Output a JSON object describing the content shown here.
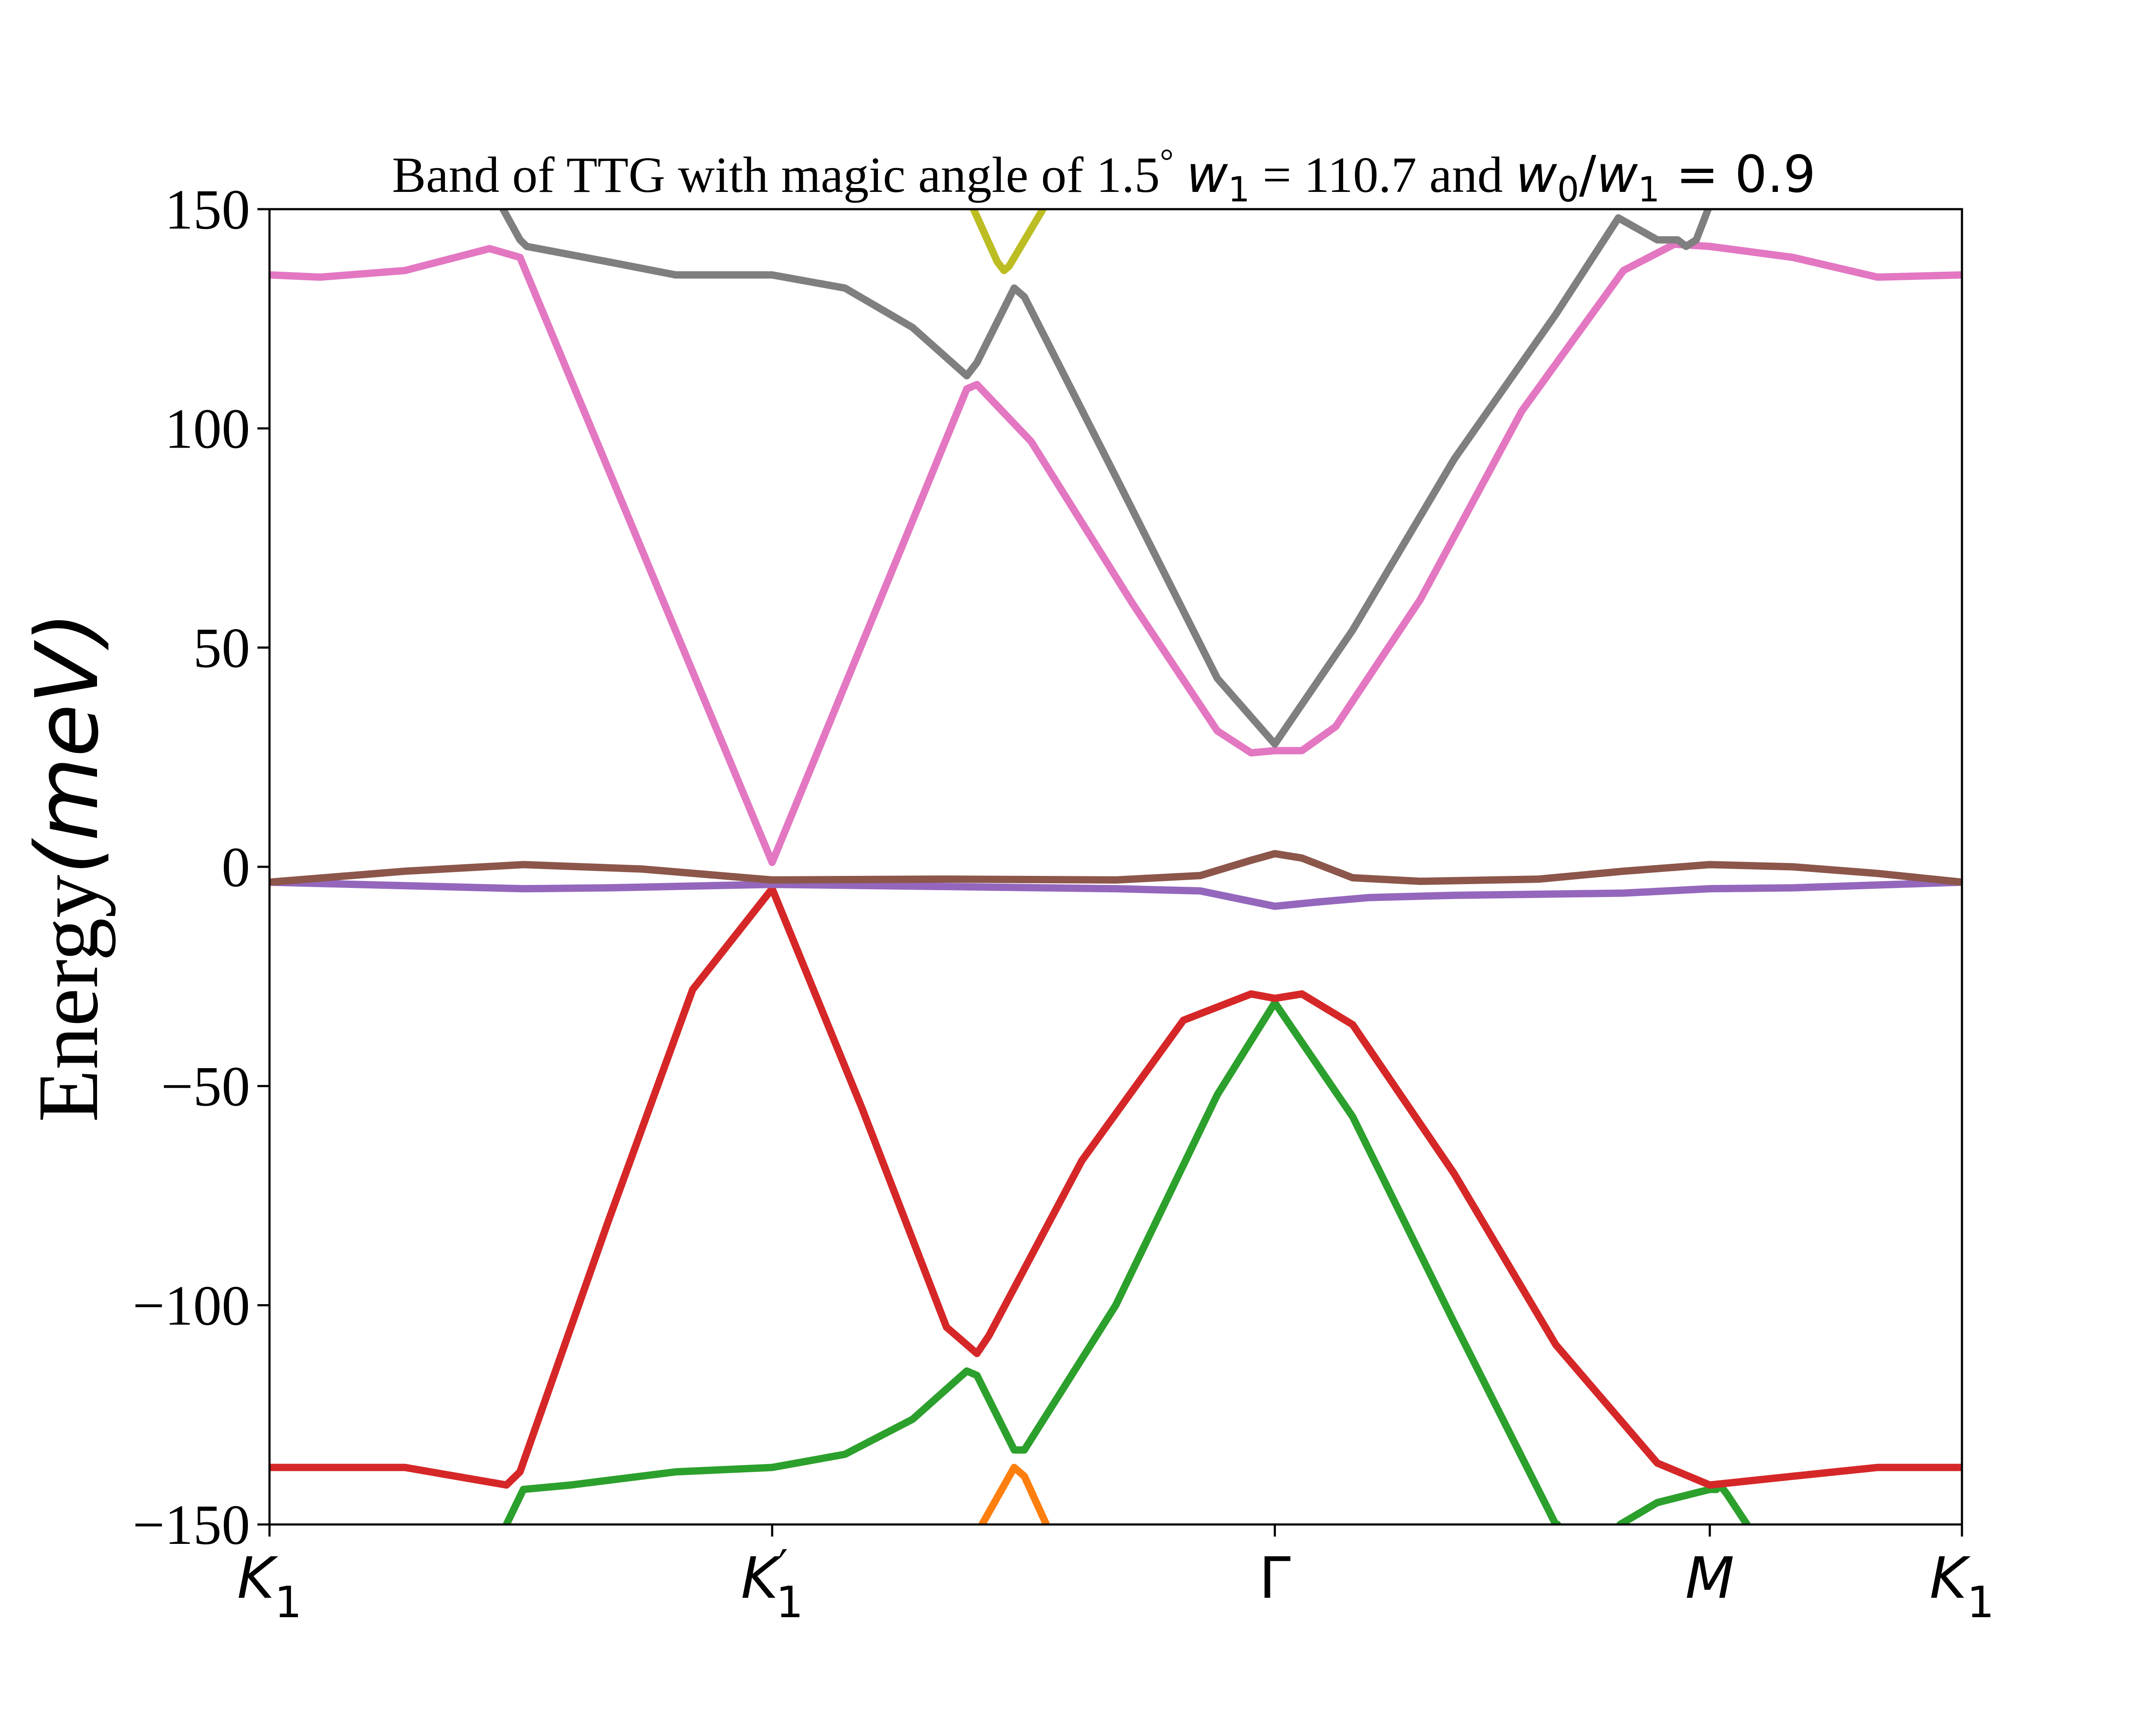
{
  "chart_data": {
    "type": "line",
    "title": "Band of TTG with magic angle of 1.5",
    "title_parts": {
      "prefix": "Band of TTG with magic angle of 1.5",
      "degree": "°",
      "w1_symbol": "w",
      "w1_sub": "1",
      "w1_eq": " = 110.7 and ",
      "w0_symbol": "w",
      "w0_sub": "0",
      "slash": "/",
      "w1b_symbol": "w",
      "w1b_sub": "1",
      "ratio_eq": " = 0.9"
    },
    "ylabel": "Energy",
    "ylabel_unit": "(meV)",
    "ylim": [
      -150,
      150
    ],
    "yticks": [
      150,
      100,
      50,
      0,
      -50,
      -100,
      -150
    ],
    "ytick_labels": [
      "150",
      "100",
      "50",
      "0",
      "−50",
      "−100",
      "−150"
    ],
    "xlim": [
      0,
      1
    ],
    "xticks": [
      {
        "label": "K",
        "sub": "1",
        "prime": "",
        "x": 0.0
      },
      {
        "label": "K",
        "sub": "1",
        "prime": "′",
        "x": 0.297
      },
      {
        "label": "Γ",
        "sub": "",
        "prime": "",
        "x": 0.594
      },
      {
        "label": "M",
        "sub": "",
        "prime": "",
        "x": 0.851
      },
      {
        "label": "K",
        "sub": "1",
        "prime": "",
        "x": 1.0
      }
    ],
    "grid": false,
    "legend": "none",
    "series": [
      {
        "color": "#ff7f0e",
        "x": [
          0.421,
          0.44,
          0.446,
          0.459
        ],
        "y": [
          -150,
          -137,
          -139,
          -150
        ]
      },
      {
        "color": "#2ca02c",
        "x": [
          0.14,
          0.15,
          0.178,
          0.24,
          0.297,
          0.34,
          0.38,
          0.412,
          0.418,
          0.44,
          0.446,
          0.5,
          0.56,
          0.594,
          0.64,
          0.7,
          0.76,
          0.761
        ],
        "y": [
          -150,
          -142,
          -141,
          -138,
          -137,
          -134,
          -126,
          -115,
          -116,
          -133,
          -133,
          -100,
          -52,
          -31,
          -57,
          -104,
          -150,
          -150
        ]
      },
      {
        "color": "#2ca02c",
        "x": [
          0.798,
          0.82,
          0.851,
          0.855,
          0.857,
          0.861,
          0.873
        ],
        "y": [
          -150,
          -145,
          -142,
          -142,
          -141,
          -143,
          -150
        ]
      },
      {
        "color": "#d62728",
        "x": [
          0.0,
          0.08,
          0.14,
          0.148,
          0.2,
          0.25,
          0.297,
          0.35,
          0.4,
          0.418,
          0.425,
          0.48,
          0.54,
          0.58,
          0.594,
          0.61,
          0.64,
          0.7,
          0.76,
          0.82,
          0.851,
          0.9,
          0.95,
          1.0
        ],
        "y": [
          -137,
          -137,
          -141,
          -138,
          -81,
          -28,
          -5,
          -55,
          -105,
          -111,
          -107,
          -67,
          -35,
          -29,
          -30,
          -29,
          -36,
          -70,
          -109,
          -136,
          -141,
          -139,
          -137,
          -137
        ]
      },
      {
        "color": "#9467bd",
        "x": [
          0.0,
          0.1,
          0.15,
          0.2,
          0.297,
          0.4,
          0.5,
          0.55,
          0.594,
          0.62,
          0.65,
          0.7,
          0.8,
          0.851,
          0.9,
          1.0
        ],
        "y": [
          -3.5,
          -4.5,
          -5,
          -4.8,
          -4,
          -4.5,
          -5,
          -5.5,
          -9,
          -8,
          -7,
          -6.5,
          -6,
          -5,
          -4.8,
          -3.5
        ]
      },
      {
        "color": "#8c564b",
        "x": [
          0.0,
          0.08,
          0.15,
          0.22,
          0.297,
          0.4,
          0.5,
          0.55,
          0.58,
          0.594,
          0.61,
          0.64,
          0.68,
          0.75,
          0.8,
          0.851,
          0.9,
          0.95,
          1.0
        ],
        "y": [
          -3.5,
          -1,
          0.5,
          -0.5,
          -3,
          -2.8,
          -3,
          -2,
          1.5,
          3,
          2,
          -2.5,
          -3.3,
          -2.8,
          -1,
          0.5,
          0,
          -1.5,
          -3.5
        ]
      },
      {
        "color": "#e377c2",
        "x": [
          0.0,
          0.03,
          0.08,
          0.13,
          0.148,
          0.297,
          0.412,
          0.418,
          0.45,
          0.51,
          0.56,
          0.58,
          0.594,
          0.61,
          0.63,
          0.68,
          0.74,
          0.8,
          0.83,
          0.851,
          0.9,
          0.95,
          1.0
        ],
        "y": [
          135,
          134.5,
          136,
          141,
          139,
          1,
          109,
          110,
          97,
          60,
          31,
          26,
          26.5,
          26.5,
          32,
          61,
          104,
          136,
          142,
          141.5,
          139,
          134.5,
          135
        ]
      },
      {
        "color": "#7f7f7f",
        "x": [
          0.138,
          0.148,
          0.152,
          0.2,
          0.24,
          0.297,
          0.34,
          0.38,
          0.412,
          0.418,
          0.44,
          0.446,
          0.5,
          0.56,
          0.594,
          0.64,
          0.7,
          0.76,
          0.797,
          0.82,
          0.832,
          0.837,
          0.843,
          0.85
        ],
        "y": [
          150,
          143,
          141.5,
          138,
          135,
          135,
          132,
          123,
          112,
          115,
          132,
          130,
          89,
          43,
          28,
          54,
          93,
          126,
          148,
          143,
          143,
          141.5,
          143,
          150
        ]
      },
      {
        "color": "#bcbd22",
        "x": [
          0.416,
          0.43,
          0.434,
          0.437,
          0.457
        ],
        "y": [
          150,
          138,
          136,
          137,
          150
        ]
      }
    ]
  }
}
